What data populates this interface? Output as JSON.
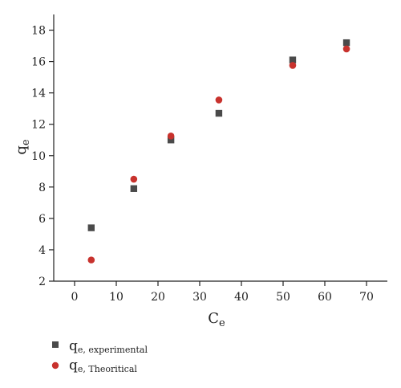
{
  "chart_data": {
    "type": "scatter",
    "xlabel": "C",
    "xlabel_sub": "e",
    "ylabel": "q",
    "ylabel_sub": "e",
    "xlim": [
      -5,
      75
    ],
    "ylim": [
      2,
      19
    ],
    "xticks": [
      0,
      10,
      20,
      30,
      40,
      50,
      60,
      70
    ],
    "yticks": [
      2,
      4,
      6,
      8,
      10,
      12,
      14,
      16,
      18
    ],
    "grid": false,
    "legend_position": "bottom-left",
    "series": [
      {
        "name": "q",
        "name_sub": "e, experimental",
        "marker": "square",
        "color": "#4a4a4a",
        "x": [
          4.0,
          14.2,
          23.1,
          34.6,
          52.3,
          65.2
        ],
        "y": [
          5.4,
          7.9,
          11.0,
          12.7,
          16.1,
          17.2
        ]
      },
      {
        "name": "q",
        "name_sub": "e, Theoritical",
        "marker": "circle",
        "color": "#c8322d",
        "x": [
          4.0,
          14.2,
          23.1,
          34.6,
          52.3,
          65.2
        ],
        "y": [
          3.35,
          8.5,
          11.25,
          13.55,
          15.75,
          16.8
        ]
      }
    ]
  }
}
